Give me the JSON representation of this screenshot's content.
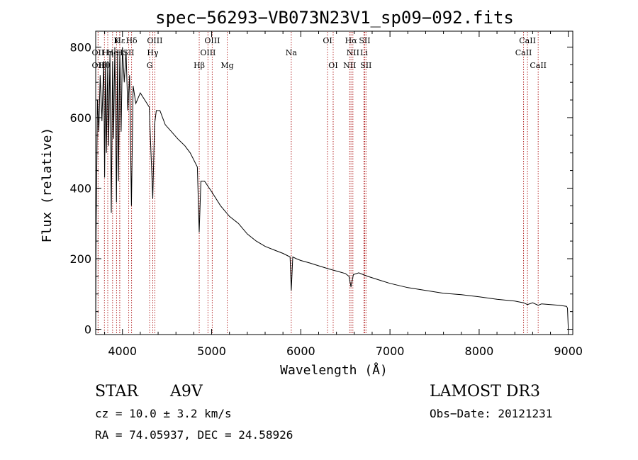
{
  "chart_data": {
    "type": "line",
    "title": "spec−56293−VB073N23V1_sp09−092.fits",
    "xlabel": "Wavelength (Å)",
    "ylabel": "Flux (relative)",
    "xlim": [
      3700,
      9050
    ],
    "ylim": [
      -15,
      845
    ],
    "x_ticks": [
      4000,
      5000,
      6000,
      7000,
      8000,
      9000
    ],
    "y_ticks": [
      0,
      200,
      400,
      600,
      800
    ],
    "series": [
      {
        "name": "flux",
        "x": [
          3700,
          3705,
          3720,
          3735,
          3750,
          3770,
          3790,
          3800,
          3810,
          3820,
          3835,
          3845,
          3860,
          3875,
          3889,
          3900,
          3915,
          3933,
          3945,
          3955,
          3970,
          3985,
          4000,
          4020,
          4040,
          4060,
          4080,
          4101,
          4120,
          4150,
          4200,
          4250,
          4300,
          4340,
          4360,
          4380,
          4420,
          4480,
          4550,
          4620,
          4700,
          4760,
          4800,
          4840,
          4861,
          4880,
          4920,
          5000,
          5100,
          5200,
          5300,
          5400,
          5500,
          5600,
          5700,
          5800,
          5880,
          5893,
          5910,
          5950,
          6000,
          6100,
          6200,
          6300,
          6400,
          6500,
          6540,
          6563,
          6590,
          6650,
          6750,
          6900,
          7000,
          7200,
          7400,
          7600,
          7800,
          8000,
          8200,
          8400,
          8498,
          8542,
          8600,
          8662,
          8700,
          8800,
          8900,
          8980,
          8990,
          9000
        ],
        "y": [
          0,
          280,
          650,
          560,
          720,
          590,
          760,
          430,
          760,
          500,
          760,
          520,
          780,
          330,
          760,
          540,
          800,
          360,
          780,
          420,
          790,
          560,
          800,
          700,
          790,
          620,
          720,
          350,
          690,
          640,
          670,
          650,
          630,
          370,
          580,
          620,
          620,
          580,
          560,
          540,
          520,
          500,
          480,
          460,
          275,
          420,
          420,
          390,
          350,
          320,
          300,
          270,
          250,
          235,
          225,
          215,
          205,
          110,
          205,
          200,
          195,
          188,
          180,
          172,
          165,
          158,
          150,
          120,
          155,
          160,
          150,
          138,
          130,
          118,
          110,
          102,
          98,
          92,
          85,
          80,
          75,
          70,
          75,
          68,
          72,
          70,
          68,
          65,
          60,
          0
        ]
      }
    ],
    "line_markers": [
      {
        "label": "Hε",
        "wavelength": 3970,
        "row": 1
      },
      {
        "label": "K",
        "wavelength": 3934,
        "row": 1
      },
      {
        "label": "Hδ",
        "wavelength": 4102,
        "row": 1
      },
      {
        "label": "OIII",
        "wavelength": 4363,
        "row": 1
      },
      {
        "label": "OIII",
        "wavelength": 5007,
        "row": 1
      },
      {
        "label": "OI",
        "wavelength": 6300,
        "row": 1
      },
      {
        "label": "Hα",
        "wavelength": 6563,
        "row": 1
      },
      {
        "label": "SII",
        "wavelength": 6717,
        "row": 1
      },
      {
        "label": "CaII",
        "wavelength": 8542,
        "row": 1
      },
      {
        "label": "OII",
        "wavelength": 3727,
        "row": 2
      },
      {
        "label": "Hη",
        "wavelength": 3835,
        "row": 2
      },
      {
        "label": "He",
        "wavelength": 3889,
        "row": 2
      },
      {
        "label": "H",
        "wavelength": 3969,
        "row": 2
      },
      {
        "label": "SII",
        "wavelength": 4070,
        "row": 2
      },
      {
        "label": "Hγ",
        "wavelength": 4340,
        "row": 2
      },
      {
        "label": "OIII",
        "wavelength": 4959,
        "row": 2
      },
      {
        "label": "Na",
        "wavelength": 5893,
        "row": 2
      },
      {
        "label": "NII",
        "wavelength": 6584,
        "row": 2
      },
      {
        "label": "Li",
        "wavelength": 6708,
        "row": 2
      },
      {
        "label": "CaII",
        "wavelength": 8498,
        "row": 2
      },
      {
        "label": "OII",
        "wavelength": 3727,
        "row": 3
      },
      {
        "label": "Hθ",
        "wavelength": 3798,
        "row": 3
      },
      {
        "label": "G",
        "wavelength": 4305,
        "row": 3
      },
      {
        "label": "Hβ",
        "wavelength": 4861,
        "row": 3
      },
      {
        "label": "Mg",
        "wavelength": 5175,
        "row": 3
      },
      {
        "label": "OI",
        "wavelength": 6363,
        "row": 3
      },
      {
        "label": "NII",
        "wavelength": 6548,
        "row": 3
      },
      {
        "label": "SII",
        "wavelength": 6731,
        "row": 3
      },
      {
        "label": "CaII",
        "wavelength": 8662,
        "row": 3
      }
    ]
  },
  "info": {
    "object_class": "STAR",
    "subclass": "A9V",
    "survey": "LAMOST DR3",
    "cz": "cz = 10.0 ± 3.2 km/s",
    "obs_date": "Obs−Date: 20121231",
    "coords": "RA =  74.05937, DEC =  24.58926"
  },
  "colors": {
    "spectrum": "#000000",
    "line_marker": "#b22222",
    "axes": "#000000"
  }
}
